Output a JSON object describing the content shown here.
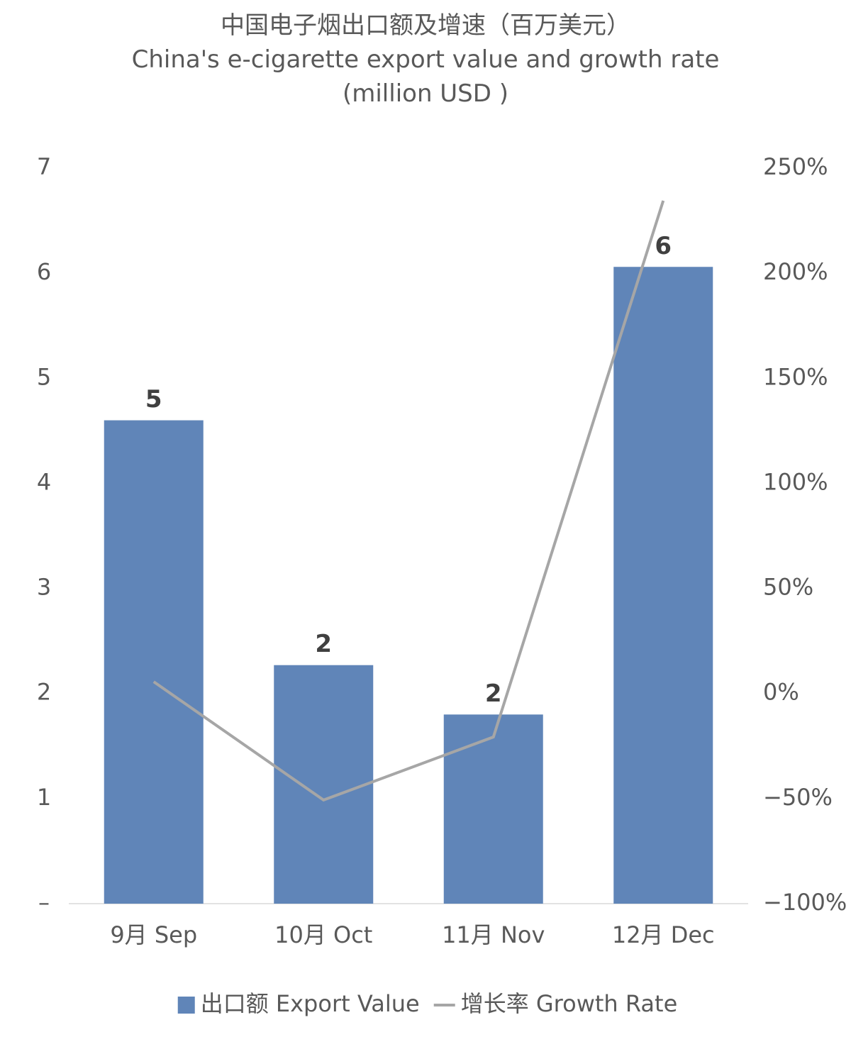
{
  "chart_data": {
    "type": "bar_line",
    "title": "中国电子烟出口额及增速（百万美元）",
    "subtitle": "China's e-cigarette export value and growth rate (million USD )",
    "categories": [
      "9月 Sep",
      "10月 Oct",
      "11月 Nov",
      "12月 Dec"
    ],
    "series": [
      {
        "name": "出口额 Export Value",
        "type": "bar",
        "color": "#6085b8",
        "values": [
          4.6,
          2.27,
          1.8,
          6.06
        ],
        "value_labels": [
          "5",
          "2",
          "2",
          "6"
        ]
      },
      {
        "name": "增长率 Growth Rate",
        "type": "line",
        "color": "#a6a6a6",
        "axis": "y2",
        "values": [
          5.6,
          -50.7,
          -20.7,
          234.5
        ]
      }
    ],
    "ylim": [
      0,
      7
    ],
    "yticks": [
      {
        "value": 0,
        "label": "–"
      },
      1,
      2,
      3,
      4,
      5,
      6,
      7
    ],
    "y2lim": [
      -100,
      250
    ],
    "y2ticks": [
      {
        "value": -100,
        "label": "−100%"
      },
      {
        "value": -50,
        "label": "−50%"
      },
      {
        "value": 0,
        "label": "0%"
      },
      {
        "value": 50,
        "label": "50%"
      },
      {
        "value": 100,
        "label": "100%"
      },
      {
        "value": 150,
        "label": "150%"
      },
      {
        "value": 200,
        "label": "200%"
      },
      {
        "value": 250,
        "label": "250%"
      }
    ],
    "grid": false,
    "legend": "bottom"
  }
}
